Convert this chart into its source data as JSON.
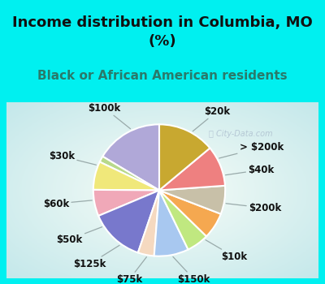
{
  "title": "Income distribution in Columbia, MO\n(%)",
  "subtitle": "Black or African American residents",
  "labels": [
    "$20k",
    "> $200k",
    "$40k",
    "$200k",
    "$10k",
    "$150k",
    "$75k",
    "$125k",
    "$50k",
    "$60k",
    "$30k",
    "$100k"
  ],
  "values": [
    16.5,
    1.5,
    7.0,
    6.5,
    13.5,
    4.0,
    8.5,
    5.5,
    6.5,
    7.0,
    10.0,
    14.0
  ],
  "colors": [
    "#b0a8d8",
    "#b8d98b",
    "#f0e87a",
    "#f0a8b8",
    "#7878cc",
    "#f5d9c0",
    "#a8c8f0",
    "#c0e880",
    "#f5a850",
    "#c8c0a8",
    "#ee8080",
    "#c8a830"
  ],
  "bg_cyan": "#00f0f0",
  "bg_chart_outer": "#b8e8d8",
  "bg_chart_inner": "#f0f8f8",
  "watermark": "ⓘ City-Data.com",
  "title_fontsize": 13,
  "subtitle_fontsize": 11,
  "label_fontsize": 8.5,
  "subtitle_color": "#2a7a6a"
}
